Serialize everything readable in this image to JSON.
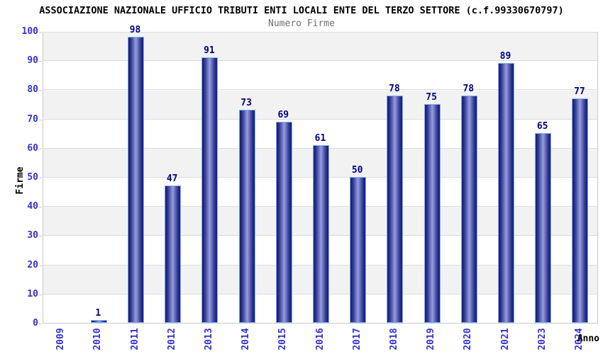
{
  "header": {
    "title": "ASSOCIAZIONE NAZIONALE UFFICIO TRIBUTI ENTI LOCALI ENTE DEL TERZO SETTORE (c.f.99330670797)",
    "subtitle": "Numero Firme"
  },
  "chart_data": {
    "type": "bar",
    "title": "ASSOCIAZIONE NAZIONALE UFFICIO TRIBUTI ENTI LOCALI ENTE DEL TERZO SETTORE (c.f.99330670797)",
    "subtitle": "Numero Firme",
    "xlabel": "Anno",
    "ylabel": "Firme",
    "categories": [
      "2009",
      "2010",
      "2011",
      "2012",
      "2013",
      "2014",
      "2015",
      "2016",
      "2017",
      "2018",
      "2019",
      "2020",
      "2021",
      "2023",
      "2024"
    ],
    "values": [
      0,
      1,
      98,
      47,
      91,
      73,
      69,
      61,
      50,
      78,
      75,
      78,
      89,
      65,
      77
    ],
    "value_labels_shown": [
      "",
      "1",
      "98",
      "47",
      "91",
      "73",
      "69",
      "61",
      "50",
      "78",
      "75",
      "78",
      "89",
      "65",
      "77"
    ],
    "ylim": [
      0,
      100
    ],
    "yticks": [
      0,
      10,
      20,
      30,
      40,
      50,
      60,
      70,
      80,
      90,
      100
    ],
    "grid": "horizontal alternating bands",
    "legend": "none",
    "notes": "no bar drawn for 2009 (value 0); year 2022 absent from axis",
    "colors": {
      "bar_edge": "#191d78",
      "bar_center": "#9099d9",
      "bar_outline": "#7ab1f0",
      "axis_tick_text": "#3232cd",
      "value_label": "#000080",
      "band_gray": "#f2f2f2",
      "band_white": "#ffffff",
      "gridline": "#dcdcdc",
      "subtitle_text": "#6e6e6e",
      "title_text": "#000000"
    }
  }
}
